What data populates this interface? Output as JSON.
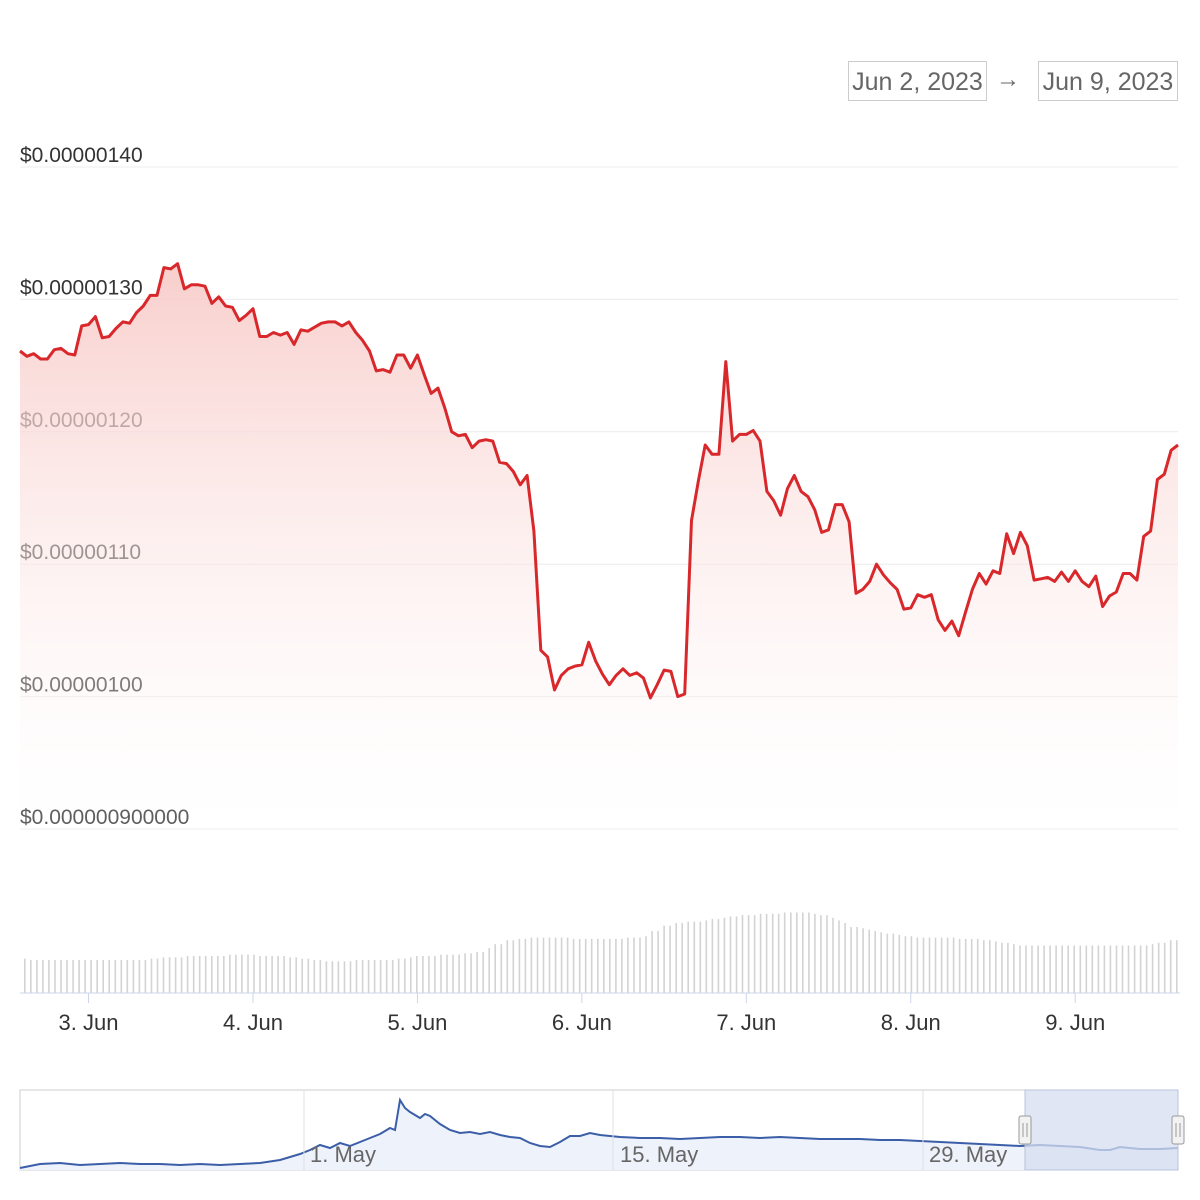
{
  "range_selector": {
    "from": "Jun 2, 2023",
    "arrow": "→",
    "to": "Jun 9, 2023"
  },
  "colors": {
    "price_line": "#d8282b",
    "area_top": "#f7c9c6",
    "volume_bar": "#d3d3d3",
    "navigator_line": "#3b5ea8",
    "navigator_selection": "#d6ddef"
  },
  "chart_data": {
    "type": "line",
    "title": "",
    "xlabel": "",
    "ylabel": "",
    "y_ticks": [
      "$0.00000140",
      "$0.00000130",
      "$0.00000120",
      "$0.00000110",
      "$0.00000100",
      "$0.000000900000"
    ],
    "y_tick_values": [
      1.4,
      1.3,
      1.2,
      1.1,
      1.0,
      0.9
    ],
    "y_unit_note": "values in micro-dollars (×1e-6 $)",
    "ylim": [
      0.9,
      1.4
    ],
    "x_ticks": [
      "3. Jun",
      "4. Jun",
      "5. Jun",
      "6. Jun",
      "7. Jun",
      "8. Jun",
      "9. Jun"
    ],
    "xlim": [
      "2023-06-02 14:00",
      "2023-06-09 15:00"
    ],
    "grid": true,
    "series": [
      {
        "name": "",
        "x_hours_note": "hours from 2023-06-02 00:00",
        "points": [
          [
            14.0,
            1.261
          ],
          [
            15.0,
            1.257
          ],
          [
            16.0,
            1.259
          ],
          [
            17.0,
            1.255
          ],
          [
            18.0,
            1.255
          ],
          [
            19.0,
            1.262
          ],
          [
            20.0,
            1.263
          ],
          [
            21.0,
            1.259
          ],
          [
            22.0,
            1.258
          ],
          [
            23.0,
            1.28
          ],
          [
            24.0,
            1.281
          ],
          [
            25.0,
            1.287
          ],
          [
            26.0,
            1.271
          ],
          [
            27.0,
            1.272
          ],
          [
            28.0,
            1.278
          ],
          [
            29.0,
            1.283
          ],
          [
            30.0,
            1.282
          ],
          [
            31.0,
            1.29
          ],
          [
            32.0,
            1.295
          ],
          [
            33.0,
            1.303
          ],
          [
            34.0,
            1.303
          ],
          [
            35.0,
            1.324
          ],
          [
            36.0,
            1.323
          ],
          [
            37.0,
            1.327
          ],
          [
            38.0,
            1.308
          ],
          [
            39.0,
            1.311
          ],
          [
            40.0,
            1.311
          ],
          [
            41.0,
            1.31
          ],
          [
            42.0,
            1.297
          ],
          [
            43.0,
            1.302
          ],
          [
            44.0,
            1.295
          ],
          [
            45.0,
            1.294
          ],
          [
            46.0,
            1.284
          ],
          [
            47.0,
            1.288
          ],
          [
            48.0,
            1.293
          ],
          [
            49.0,
            1.272
          ],
          [
            50.0,
            1.272
          ],
          [
            51.0,
            1.275
          ],
          [
            52.0,
            1.273
          ],
          [
            53.0,
            1.275
          ],
          [
            54.0,
            1.266
          ],
          [
            55.0,
            1.277
          ],
          [
            56.0,
            1.276
          ],
          [
            57.0,
            1.279
          ],
          [
            58.0,
            1.282
          ],
          [
            59.0,
            1.283
          ],
          [
            60.0,
            1.283
          ],
          [
            61.0,
            1.28
          ],
          [
            62.0,
            1.283
          ],
          [
            63.0,
            1.275
          ],
          [
            64.0,
            1.269
          ],
          [
            65.0,
            1.261
          ],
          [
            66.0,
            1.246
          ],
          [
            67.0,
            1.247
          ],
          [
            68.0,
            1.245
          ],
          [
            69.0,
            1.258
          ],
          [
            70.0,
            1.258
          ],
          [
            71.0,
            1.248
          ],
          [
            72.0,
            1.258
          ],
          [
            73.0,
            1.243
          ],
          [
            74.0,
            1.229
          ],
          [
            75.0,
            1.233
          ],
          [
            76.0,
            1.218
          ],
          [
            77.0,
            1.2
          ],
          [
            78.0,
            1.197
          ],
          [
            79.0,
            1.198
          ],
          [
            80.0,
            1.188
          ],
          [
            81.0,
            1.193
          ],
          [
            82.0,
            1.194
          ],
          [
            83.0,
            1.193
          ],
          [
            84.0,
            1.177
          ],
          [
            85.0,
            1.176
          ],
          [
            86.0,
            1.17
          ],
          [
            87.0,
            1.16
          ],
          [
            88.0,
            1.167
          ],
          [
            89.0,
            1.125
          ],
          [
            90.0,
            1.035
          ],
          [
            91.0,
            1.03
          ],
          [
            92.0,
            1.005
          ],
          [
            93.0,
            1.016
          ],
          [
            94.0,
            1.021
          ],
          [
            95.0,
            1.023
          ],
          [
            96.0,
            1.024
          ],
          [
            97.0,
            1.041
          ],
          [
            98.0,
            1.027
          ],
          [
            99.0,
            1.017
          ],
          [
            100.0,
            1.009
          ],
          [
            101.0,
            1.016
          ],
          [
            102.0,
            1.021
          ],
          [
            103.0,
            1.016
          ],
          [
            104.0,
            1.018
          ],
          [
            105.0,
            1.014
          ],
          [
            106.0,
            0.999
          ],
          [
            107.0,
            1.009
          ],
          [
            108.0,
            1.02
          ],
          [
            109.0,
            1.019
          ],
          [
            110.0,
            1.0
          ],
          [
            111.0,
            1.002
          ],
          [
            112.0,
            1.133
          ],
          [
            113.0,
            1.163
          ],
          [
            114.0,
            1.19
          ],
          [
            115.0,
            1.183
          ],
          [
            116.0,
            1.183
          ],
          [
            117.0,
            1.253
          ],
          [
            118.0,
            1.193
          ],
          [
            119.0,
            1.198
          ],
          [
            120.0,
            1.198
          ],
          [
            121.0,
            1.201
          ],
          [
            122.0,
            1.193
          ],
          [
            123.0,
            1.155
          ],
          [
            124.0,
            1.148
          ],
          [
            125.0,
            1.137
          ],
          [
            126.0,
            1.157
          ],
          [
            127.0,
            1.167
          ],
          [
            128.0,
            1.155
          ],
          [
            129.0,
            1.151
          ],
          [
            130.0,
            1.141
          ],
          [
            131.0,
            1.124
          ],
          [
            132.0,
            1.126
          ],
          [
            133.0,
            1.145
          ],
          [
            134.0,
            1.145
          ],
          [
            135.0,
            1.132
          ],
          [
            136.0,
            1.078
          ],
          [
            137.0,
            1.081
          ],
          [
            138.0,
            1.087
          ],
          [
            139.0,
            1.1
          ],
          [
            140.0,
            1.092
          ],
          [
            141.0,
            1.086
          ],
          [
            142.0,
            1.081
          ],
          [
            143.0,
            1.066
          ],
          [
            144.0,
            1.067
          ],
          [
            145.0,
            1.077
          ],
          [
            146.0,
            1.075
          ],
          [
            147.0,
            1.077
          ],
          [
            148.0,
            1.058
          ],
          [
            149.0,
            1.05
          ],
          [
            150.0,
            1.057
          ],
          [
            151.0,
            1.046
          ],
          [
            152.0,
            1.064
          ],
          [
            153.0,
            1.081
          ],
          [
            154.0,
            1.093
          ],
          [
            155.0,
            1.085
          ],
          [
            156.0,
            1.095
          ],
          [
            157.0,
            1.093
          ],
          [
            158.0,
            1.123
          ],
          [
            159.0,
            1.108
          ],
          [
            160.0,
            1.124
          ],
          [
            161.0,
            1.114
          ],
          [
            162.0,
            1.088
          ],
          [
            163.0,
            1.089
          ],
          [
            164.0,
            1.09
          ],
          [
            165.0,
            1.087
          ],
          [
            166.0,
            1.094
          ],
          [
            167.0,
            1.087
          ],
          [
            168.0,
            1.095
          ],
          [
            169.0,
            1.087
          ],
          [
            170.0,
            1.083
          ],
          [
            171.0,
            1.091
          ],
          [
            172.0,
            1.068
          ],
          [
            173.0,
            1.076
          ],
          [
            174.0,
            1.079
          ],
          [
            175.0,
            1.093
          ],
          [
            176.0,
            1.093
          ],
          [
            177.0,
            1.088
          ],
          [
            178.0,
            1.121
          ],
          [
            179.0,
            1.125
          ],
          [
            180.0,
            1.164
          ],
          [
            181.0,
            1.168
          ],
          [
            182.0,
            1.186
          ],
          [
            183.0,
            1.19
          ]
        ]
      }
    ],
    "volume": {
      "values": [
        26,
        25,
        25,
        25,
        25,
        25,
        25,
        25,
        25,
        25,
        25,
        25,
        25,
        25,
        25,
        25,
        25,
        25,
        25,
        25,
        25,
        26,
        26,
        27,
        27,
        27,
        27,
        28,
        28,
        28,
        28,
        28,
        28,
        28,
        29,
        29,
        29,
        29,
        29,
        28,
        28,
        28,
        28,
        28,
        27,
        27,
        26,
        26,
        25,
        25,
        24,
        24,
        24,
        24,
        24,
        25,
        25,
        25,
        25,
        25,
        25,
        25,
        26,
        26,
        27,
        28,
        28,
        28,
        28,
        29,
        29,
        29,
        29,
        30,
        30,
        31,
        31,
        34,
        37,
        37,
        40,
        40,
        41,
        41,
        42,
        42,
        42,
        42,
        42,
        42,
        42,
        41,
        41,
        41,
        41,
        41,
        41,
        41,
        41,
        41,
        42,
        42,
        42,
        43,
        47,
        47,
        51,
        51,
        53,
        53,
        54,
        54,
        54,
        55,
        56,
        56,
        57,
        58,
        58,
        59,
        59,
        59,
        60,
        60,
        60,
        60,
        61,
        61,
        61,
        61,
        61,
        60,
        59,
        59,
        57,
        55,
        53,
        50,
        50,
        49,
        48,
        47,
        46,
        45,
        45,
        44,
        43,
        43,
        42,
        42,
        42,
        42,
        42,
        42,
        42,
        41,
        41,
        41,
        41,
        40,
        40,
        39,
        38,
        38,
        37,
        36,
        36,
        36,
        36,
        36,
        36,
        36,
        36,
        36,
        36,
        36,
        36,
        36,
        36,
        36,
        36,
        36,
        36,
        36,
        36,
        36,
        36,
        37,
        38,
        38,
        40,
        40
      ]
    },
    "navigator": {
      "labels": [
        "1. May",
        "15. May",
        "29. May"
      ]
    }
  }
}
